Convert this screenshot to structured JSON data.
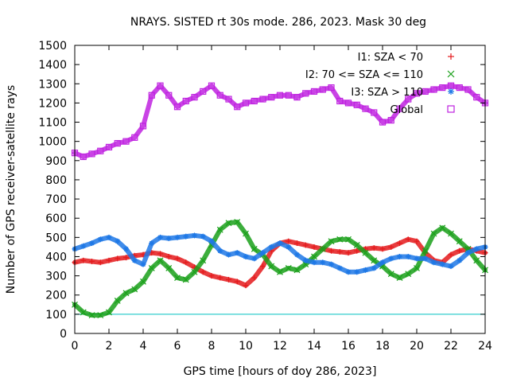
{
  "chart_data": {
    "type": "scatter",
    "title": "NRAYS. SISTED rt 30s mode. 286, 2023. Mask 30 deg",
    "xlabel": "GPS time [hours of doy 286, 2023]",
    "ylabel": "Number of GPS receiver-satellite rays",
    "xlim": [
      0,
      24
    ],
    "ylim": [
      0,
      1500
    ],
    "xticks": [
      0,
      2,
      4,
      6,
      8,
      10,
      12,
      14,
      16,
      18,
      20,
      22,
      24
    ],
    "yticks": [
      0,
      100,
      200,
      300,
      400,
      500,
      600,
      700,
      800,
      900,
      1000,
      1100,
      1200,
      1300,
      1400,
      1500
    ],
    "reference_line": {
      "y": 100,
      "color": "#00c0c0"
    },
    "series": [
      {
        "name": "I1: SZA < 70",
        "marker": "+",
        "color": "#e41a1c",
        "x": [
          0,
          0.5,
          1,
          1.5,
          2,
          2.5,
          3,
          3.5,
          4,
          4.5,
          5,
          5.5,
          6,
          6.5,
          7,
          7.5,
          8,
          8.5,
          9,
          9.5,
          10,
          10.5,
          11,
          11.5,
          12,
          12.5,
          13,
          13.5,
          14,
          14.5,
          15,
          15.5,
          16,
          16.5,
          17,
          17.5,
          18,
          18.5,
          19,
          19.5,
          20,
          20.5,
          21,
          21.5,
          22,
          22.5,
          23,
          23.5,
          24
        ],
        "values": [
          370,
          380,
          375,
          370,
          380,
          390,
          395,
          405,
          410,
          420,
          415,
          400,
          390,
          370,
          345,
          320,
          300,
          290,
          280,
          270,
          250,
          290,
          350,
          430,
          470,
          480,
          470,
          460,
          450,
          440,
          430,
          425,
          420,
          430,
          440,
          445,
          440,
          450,
          470,
          490,
          480,
          420,
          380,
          370,
          410,
          430,
          440,
          430,
          420
        ]
      },
      {
        "name": "I2: 70 <= SZA <= 110",
        "marker": "x",
        "color": "#1aa01a",
        "x": [
          0,
          0.5,
          1,
          1.5,
          2,
          2.5,
          3,
          3.5,
          4,
          4.5,
          5,
          5.5,
          6,
          6.5,
          7,
          7.5,
          8,
          8.5,
          9,
          9.5,
          10,
          10.5,
          11,
          11.5,
          12,
          12.5,
          13,
          13.5,
          14,
          14.5,
          15,
          15.5,
          16,
          16.5,
          17,
          17.5,
          18,
          18.5,
          19,
          19.5,
          20,
          20.5,
          21,
          21.5,
          22,
          22.5,
          23,
          23.5,
          24
        ],
        "values": [
          150,
          110,
          95,
          95,
          110,
          170,
          210,
          230,
          270,
          340,
          380,
          340,
          290,
          280,
          320,
          380,
          460,
          540,
          575,
          580,
          520,
          440,
          410,
          350,
          320,
          340,
          330,
          360,
          400,
          440,
          480,
          490,
          490,
          460,
          420,
          380,
          350,
          310,
          290,
          310,
          340,
          430,
          520,
          550,
          520,
          480,
          440,
          380,
          330
        ]
      },
      {
        "name": "I3: SZA > 110",
        "marker": "*",
        "color": "#1e78e6",
        "x": [
          0,
          0.5,
          1,
          1.5,
          2,
          2.5,
          3,
          3.5,
          4,
          4.5,
          5,
          5.5,
          6,
          6.5,
          7,
          7.5,
          8,
          8.5,
          9,
          9.5,
          10,
          10.5,
          11,
          11.5,
          12,
          12.5,
          13,
          13.5,
          14,
          14.5,
          15,
          15.5,
          16,
          16.5,
          17,
          17.5,
          18,
          18.5,
          19,
          19.5,
          20,
          20.5,
          21,
          21.5,
          22,
          22.5,
          23,
          23.5,
          24
        ],
        "values": [
          440,
          455,
          470,
          490,
          500,
          480,
          440,
          380,
          360,
          470,
          500,
          495,
          500,
          505,
          510,
          505,
          480,
          430,
          410,
          420,
          400,
          390,
          420,
          450,
          470,
          450,
          410,
          380,
          370,
          370,
          360,
          340,
          320,
          320,
          330,
          340,
          370,
          390,
          400,
          400,
          390,
          390,
          370,
          360,
          350,
          380,
          420,
          440,
          450
        ]
      },
      {
        "name": "Global",
        "marker": "square",
        "color": "#bf22e0",
        "x": [
          0,
          0.5,
          1,
          1.5,
          2,
          2.5,
          3,
          3.5,
          4,
          4.5,
          5,
          5.5,
          6,
          6.5,
          7,
          7.5,
          8,
          8.5,
          9,
          9.5,
          10,
          10.5,
          11,
          11.5,
          12,
          12.5,
          13,
          13.5,
          14,
          14.5,
          15,
          15.5,
          16,
          16.5,
          17,
          17.5,
          18,
          18.5,
          19,
          19.5,
          20,
          20.5,
          21,
          21.5,
          22,
          22.5,
          23,
          23.5,
          24
        ],
        "values": [
          940,
          920,
          935,
          950,
          970,
          990,
          1000,
          1020,
          1080,
          1240,
          1290,
          1240,
          1180,
          1210,
          1230,
          1260,
          1290,
          1240,
          1220,
          1180,
          1200,
          1210,
          1220,
          1230,
          1240,
          1240,
          1230,
          1250,
          1260,
          1270,
          1280,
          1210,
          1200,
          1190,
          1170,
          1150,
          1100,
          1110,
          1170,
          1220,
          1250,
          1260,
          1270,
          1280,
          1290,
          1280,
          1270,
          1230,
          1200
        ]
      }
    ]
  }
}
